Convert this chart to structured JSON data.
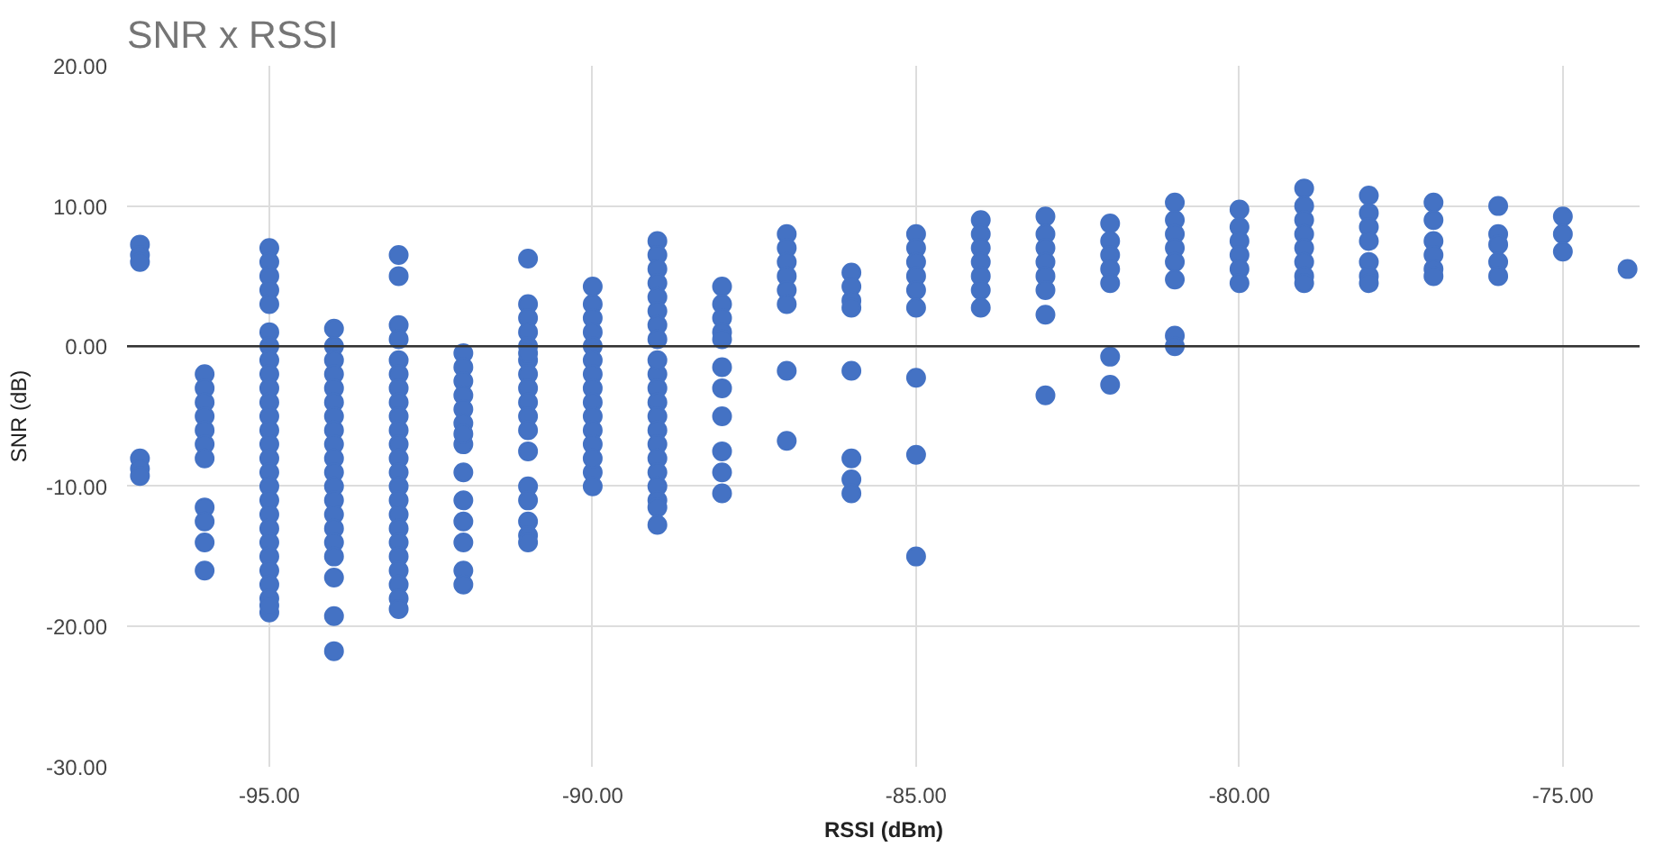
{
  "chart_data": {
    "type": "scatter",
    "title": "SNR x RSSI",
    "xlabel": "RSSI (dBm)",
    "ylabel": "SNR (dB)",
    "x": [
      -97,
      -97,
      -97,
      -97,
      -97,
      -97,
      -96,
      -96,
      -96,
      -96,
      -96,
      -96,
      -96,
      -96,
      -96,
      -96,
      -96,
      -95,
      -95,
      -95,
      -95,
      -95,
      -95,
      -95,
      -95,
      -95,
      -95,
      -95,
      -95,
      -95,
      -95,
      -95,
      -95,
      -95,
      -95,
      -95,
      -95,
      -95,
      -95,
      -95,
      -95,
      -95,
      -95,
      -95,
      -94,
      -94,
      -94,
      -94,
      -94,
      -94,
      -94,
      -94,
      -94,
      -94,
      -94,
      -94,
      -94,
      -94,
      -94,
      -94,
      -94,
      -94,
      -94,
      -94,
      -93,
      -93,
      -93,
      -93,
      -93,
      -93,
      -93,
      -93,
      -93,
      -93,
      -93,
      -93,
      -93,
      -93,
      -93,
      -93,
      -93,
      -93,
      -93,
      -93,
      -93,
      -93,
      -93,
      -92,
      -92,
      -92,
      -92,
      -92,
      -92,
      -92,
      -92,
      -92,
      -92,
      -92,
      -92,
      -92,
      -92,
      -91,
      -91,
      -91,
      -91,
      -91,
      -91,
      -91,
      -91,
      -91,
      -91,
      -91,
      -91,
      -91,
      -91,
      -91,
      -91,
      -91,
      -91,
      -90,
      -90,
      -90,
      -90,
      -90,
      -90,
      -90,
      -90,
      -90,
      -90,
      -90,
      -90,
      -90,
      -90,
      -90,
      -89,
      -89,
      -89,
      -89,
      -89,
      -89,
      -89,
      -89,
      -89,
      -89,
      -89,
      -89,
      -89,
      -89,
      -89,
      -89,
      -89,
      -89,
      -89,
      -89,
      -89,
      -88,
      -88,
      -88,
      -88,
      -88,
      -88,
      -88,
      -88,
      -88,
      -88,
      -88,
      -87,
      -87,
      -87,
      -87,
      -87,
      -87,
      -87,
      -87,
      -86,
      -86,
      -86,
      -86,
      -86,
      -86,
      -86,
      -86,
      -85,
      -85,
      -85,
      -85,
      -85,
      -85,
      -85,
      -85,
      -85,
      -84,
      -84,
      -84,
      -84,
      -84,
      -84,
      -84,
      -83,
      -83,
      -83,
      -83,
      -83,
      -83,
      -83,
      -83,
      -82,
      -82,
      -82,
      -82,
      -82,
      -82,
      -82,
      -81,
      -81,
      -81,
      -81,
      -81,
      -81,
      -81,
      -81,
      -80,
      -80,
      -80,
      -80,
      -80,
      -80,
      -79,
      -79,
      -79,
      -79,
      -79,
      -79,
      -79,
      -79,
      -78,
      -78,
      -78,
      -78,
      -78,
      -78,
      -78,
      -77,
      -77,
      -77,
      -77,
      -77,
      -77,
      -76,
      -76,
      -76,
      -76,
      -76,
      -75,
      -75,
      -75,
      -74
    ],
    "values": [
      7.25,
      6.5,
      6,
      -8,
      -8.75,
      -9.25,
      -2,
      -3,
      -4,
      -5,
      -6,
      -7,
      -8,
      -11.5,
      -12.5,
      -14,
      -16,
      7,
      6,
      5,
      4,
      3,
      1,
      0,
      -1,
      -2,
      -3,
      -4,
      -5,
      -6,
      -7,
      -8,
      -9,
      -10,
      -11,
      -12,
      -13,
      -14,
      -15,
      -16,
      -17,
      -18,
      -19,
      -18.5,
      1.25,
      0,
      -1,
      -2,
      -3,
      -4,
      -5,
      -6,
      -7,
      -8,
      -9,
      -10,
      -11,
      -12,
      -13,
      -14,
      -15,
      -16.5,
      -19.25,
      -21.75,
      6.5,
      5,
      1.5,
      0.5,
      -1,
      -2,
      -3,
      -4,
      -5,
      -6,
      -7,
      -8,
      -9,
      -10,
      -11,
      -12,
      -13,
      -14,
      -15,
      -16,
      -17,
      -18,
      -18.75,
      -0.5,
      -1.5,
      -2.5,
      -3.5,
      -4.5,
      -5.5,
      -7,
      -9,
      -11,
      -12.5,
      -14,
      -16,
      -17,
      -6.25,
      6.25,
      3,
      2,
      1,
      0,
      -1,
      -2,
      -3,
      -4,
      -5,
      -6,
      -7.5,
      -10,
      -11,
      -12.5,
      -13.5,
      -14,
      -0.5,
      4.25,
      3,
      2,
      1,
      0,
      -1,
      -2,
      -3,
      -4,
      -5,
      -6,
      -7,
      -9,
      -10,
      -8,
      7.5,
      6.5,
      5.5,
      4.5,
      3.5,
      2.5,
      1.5,
      0.5,
      -2,
      -3,
      -4,
      -5,
      -6,
      -7,
      -8,
      -9,
      -10,
      -11,
      -11.5,
      -12.75,
      -1,
      4.25,
      3,
      2,
      1,
      0.5,
      -1.5,
      -3,
      -5,
      -7.5,
      -9,
      -10.5,
      8,
      7,
      6,
      5,
      4,
      3,
      -1.75,
      -6.75,
      5.25,
      4.25,
      3.25,
      2.75,
      -1.75,
      -8,
      -9.5,
      -10.5,
      8,
      7,
      6,
      5,
      4,
      2.75,
      -2.25,
      -7.75,
      -15,
      9,
      8,
      7,
      6,
      5,
      4,
      2.75,
      9.25,
      8,
      7,
      6,
      5,
      4,
      2.25,
      -3.5,
      8.75,
      7.5,
      6.5,
      5.5,
      4.5,
      -0.75,
      -2.75,
      10.25,
      9,
      8,
      7,
      6,
      4.75,
      0.75,
      0,
      9.75,
      8.5,
      7.5,
      6.5,
      5.5,
      4.5,
      11.25,
      10,
      9,
      8,
      7,
      6,
      5,
      4.5,
      10.75,
      9.5,
      8.5,
      7.5,
      6,
      5,
      4.5,
      10.25,
      9,
      7.5,
      6.5,
      5.5,
      5,
      10,
      8,
      7.25,
      6,
      5,
      9.25,
      8,
      6.75,
      5.5
    ],
    "color": "#4472c4",
    "marker": "circle",
    "grid": true,
    "xlim": [
      -97.2,
      -73.8
    ],
    "ylim": [
      -30,
      20
    ],
    "xticks": [
      {
        "value": -95,
        "label": "-95.00"
      },
      {
        "value": -90,
        "label": "-90.00"
      },
      {
        "value": -85,
        "label": "-85.00"
      },
      {
        "value": -80,
        "label": "-80.00"
      },
      {
        "value": -75,
        "label": "-75.00"
      }
    ],
    "yticks": [
      {
        "value": -30,
        "label": "-30.00"
      },
      {
        "value": -20,
        "label": "-20.00"
      },
      {
        "value": -10,
        "label": "-10.00"
      },
      {
        "value": 0,
        "label": "0.00"
      },
      {
        "value": 10,
        "label": "10.00"
      },
      {
        "value": 20,
        "label": "20.00"
      }
    ],
    "ref_lines": [
      {
        "axis": "y",
        "value": 0,
        "color": "#333333"
      }
    ]
  }
}
